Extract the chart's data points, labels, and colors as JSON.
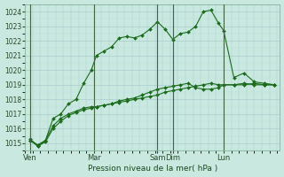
{
  "xlabel": "Pression niveau de la mer( hPa )",
  "background_color": "#c8e8e0",
  "grid_color": "#aacccc",
  "line_color": "#1a6b1a",
  "ylim": [
    1014.5,
    1024.5
  ],
  "xlim": [
    0,
    100
  ],
  "yticks": [
    1015,
    1016,
    1017,
    1018,
    1019,
    1020,
    1021,
    1022,
    1023,
    1024
  ],
  "xtick_positions": [
    2,
    27,
    52,
    58,
    78,
    98
  ],
  "xtick_labels": [
    "Ven",
    "Mar",
    "Sam",
    "Dim",
    "Lun",
    ""
  ],
  "vline_positions": [
    2,
    27,
    52,
    58,
    78,
    98
  ],
  "series1": [
    [
      2,
      1015.3
    ],
    [
      5,
      1014.8
    ],
    [
      8,
      1015.2
    ],
    [
      11,
      1016.7
    ],
    [
      14,
      1017.0
    ],
    [
      17,
      1017.7
    ],
    [
      20,
      1018.0
    ],
    [
      23,
      1019.1
    ],
    [
      26,
      1020.0
    ],
    [
      28,
      1021.0
    ],
    [
      31,
      1021.3
    ],
    [
      34,
      1021.6
    ],
    [
      37,
      1022.2
    ],
    [
      40,
      1022.3
    ],
    [
      43,
      1022.2
    ],
    [
      46,
      1022.4
    ],
    [
      49,
      1022.8
    ],
    [
      52,
      1023.3
    ],
    [
      55,
      1022.8
    ],
    [
      58,
      1022.1
    ],
    [
      61,
      1022.5
    ],
    [
      64,
      1022.6
    ],
    [
      67,
      1023.0
    ],
    [
      70,
      1024.0
    ],
    [
      73,
      1024.1
    ],
    [
      76,
      1023.2
    ],
    [
      78,
      1022.7
    ],
    [
      82,
      1019.5
    ],
    [
      86,
      1019.8
    ],
    [
      90,
      1019.2
    ],
    [
      94,
      1019.1
    ],
    [
      98,
      1019.0
    ]
  ],
  "series2": [
    [
      2,
      1015.2
    ],
    [
      5,
      1014.8
    ],
    [
      8,
      1015.1
    ],
    [
      11,
      1016.0
    ],
    [
      14,
      1016.5
    ],
    [
      17,
      1016.9
    ],
    [
      20,
      1017.1
    ],
    [
      23,
      1017.3
    ],
    [
      26,
      1017.4
    ],
    [
      28,
      1017.5
    ],
    [
      31,
      1017.6
    ],
    [
      34,
      1017.7
    ],
    [
      37,
      1017.9
    ],
    [
      40,
      1018.0
    ],
    [
      43,
      1018.1
    ],
    [
      46,
      1018.3
    ],
    [
      49,
      1018.5
    ],
    [
      52,
      1018.7
    ],
    [
      55,
      1018.8
    ],
    [
      58,
      1018.9
    ],
    [
      61,
      1019.0
    ],
    [
      64,
      1019.1
    ],
    [
      67,
      1018.8
    ],
    [
      70,
      1018.7
    ],
    [
      73,
      1018.7
    ],
    [
      76,
      1018.8
    ],
    [
      78,
      1019.0
    ],
    [
      82,
      1019.0
    ],
    [
      86,
      1019.0
    ],
    [
      90,
      1019.1
    ],
    [
      94,
      1019.0
    ],
    [
      98,
      1019.0
    ]
  ],
  "series3": [
    [
      2,
      1015.2
    ],
    [
      5,
      1014.9
    ],
    [
      8,
      1015.2
    ],
    [
      11,
      1016.2
    ],
    [
      14,
      1016.7
    ],
    [
      17,
      1017.0
    ],
    [
      20,
      1017.2
    ],
    [
      23,
      1017.4
    ],
    [
      26,
      1017.5
    ],
    [
      28,
      1017.5
    ],
    [
      31,
      1017.6
    ],
    [
      34,
      1017.7
    ],
    [
      37,
      1017.8
    ],
    [
      40,
      1017.9
    ],
    [
      43,
      1018.0
    ],
    [
      46,
      1018.1
    ],
    [
      49,
      1018.2
    ],
    [
      52,
      1018.3
    ],
    [
      55,
      1018.5
    ],
    [
      58,
      1018.6
    ],
    [
      61,
      1018.7
    ],
    [
      64,
      1018.8
    ],
    [
      67,
      1018.9
    ],
    [
      70,
      1019.0
    ],
    [
      73,
      1019.1
    ],
    [
      76,
      1019.0
    ],
    [
      78,
      1019.0
    ],
    [
      82,
      1019.0
    ],
    [
      86,
      1019.1
    ],
    [
      90,
      1019.0
    ],
    [
      94,
      1019.0
    ],
    [
      98,
      1019.0
    ]
  ]
}
